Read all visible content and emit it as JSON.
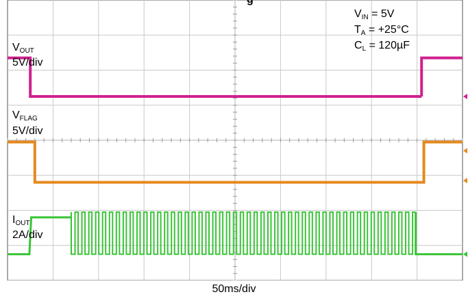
{
  "colors": {
    "background": "#ffffff",
    "grid": "#c8c8c8",
    "frame": "#555555",
    "vout": "#d0208e",
    "vflag": "#e5891e",
    "iout": "#39c436"
  },
  "title_fragment": "g",
  "conditions": {
    "vin": {
      "symbol": "V",
      "sub": "IN",
      "value": " = 5V"
    },
    "ta": {
      "symbol": "T",
      "sub": "A",
      "value": " = +25°C"
    },
    "cl": {
      "symbol": "C",
      "sub": "L",
      "value": " = 120µF"
    }
  },
  "channel_labels": {
    "vout": {
      "symbol": "V",
      "sub": "OUT",
      "scale": "5V/div"
    },
    "vflag": {
      "symbol": "V",
      "sub": "FLAG",
      "scale": "5V/div"
    },
    "iout": {
      "symbol": "I",
      "sub": "OUT",
      "scale": "2A/div"
    }
  },
  "timebase": "50ms/div",
  "chart_data": {
    "type": "line",
    "x_units": "divisions",
    "y_units": "divisions",
    "xlim": [
      0,
      10
    ],
    "ylim": [
      -4,
      4
    ],
    "grid": true,
    "divisions": {
      "x": 10,
      "y": 8
    },
    "series": [
      {
        "name": "V_OUT",
        "color": "#d0208e",
        "x": [
          0,
          0.5,
          0.5,
          10.5
        ],
        "y": [
          2.35,
          2.35,
          1.25,
          1.25
        ],
        "tail": {
          "x": [
            9.1,
            9.1,
            10
          ],
          "y": [
            1.25,
            2.35,
            2.35
          ]
        }
      },
      {
        "name": "V_FLAG",
        "color": "#e5891e",
        "x": [
          0,
          0.6,
          0.6,
          9.15,
          9.15,
          10
        ],
        "y": [
          -0.05,
          -0.05,
          -1.2,
          -1.2,
          -0.05,
          -0.05
        ]
      },
      {
        "name": "I_OUT",
        "color": "#39c436",
        "ramp": {
          "x": [
            0,
            0.48,
            0.52,
            1.4
          ],
          "y": [
            -3.25,
            -3.25,
            -2.2,
            -2.2
          ]
        },
        "pulse_train": {
          "start": 1.4,
          "end": 8.97,
          "count": 50,
          "high": -2.05,
          "low": -3.25,
          "duty": 0.55
        },
        "tail": {
          "x": [
            8.97,
            10
          ],
          "y": [
            -3.25,
            -3.25
          ]
        }
      }
    ]
  }
}
